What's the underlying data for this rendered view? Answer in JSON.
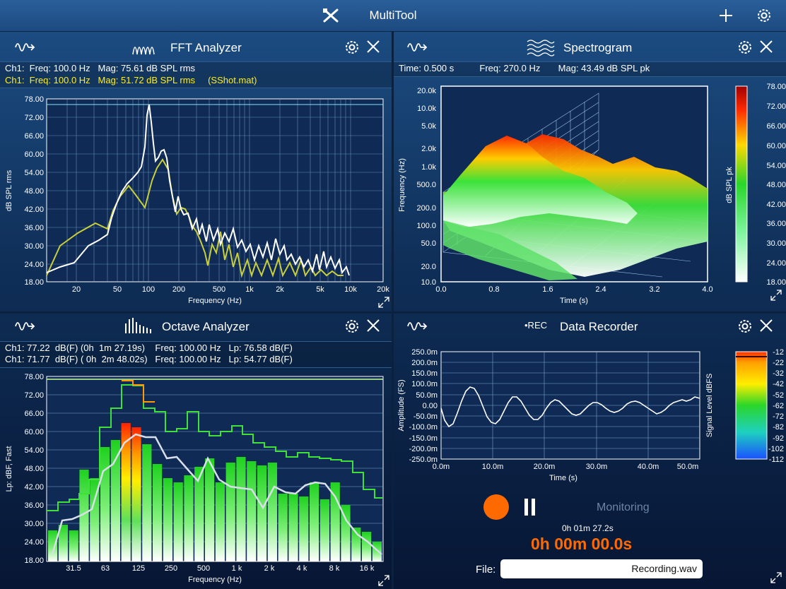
{
  "app": {
    "title": "MultiTool"
  },
  "fft": {
    "title": "FFT Analyzer",
    "line1": "Ch1:  Freq: 100.0 Hz   Mag: 75.61 dB SPL rms",
    "line2": "Ch1:  Freq: 100.0 Hz   Mag: 51.72 dB SPL rms     (SShot.mat)",
    "ylabel": "dB SPL rms",
    "xlabel": "Frequency (Hz)",
    "yticks": [
      "78.00",
      "72.00",
      "66.00",
      "60.00",
      "54.00",
      "48.00",
      "42.00",
      "36.00",
      "30.00",
      "24.00",
      "18.00"
    ],
    "xticks": [
      "20",
      "50",
      "100",
      "200",
      "500",
      "1k",
      "2k",
      "5k",
      "10k",
      "20k"
    ]
  },
  "spectrogram": {
    "title": "Spectrogram",
    "info": "Time: 0.500 s          Freq: 270.0 Hz       Mag: 43.49 dB SPL pk",
    "ylabel": "Frequency (Hz)",
    "xlabel": "Time (s)",
    "yticks": [
      "20.0k",
      "10.0k",
      "5.0k",
      "2.0k",
      "1.0k",
      "500.0",
      "200.0",
      "100.0",
      "50.0",
      "20.0",
      "10.0"
    ],
    "xticks": [
      "0.0",
      "0.8",
      "1.6",
      "2.4",
      "3.2",
      "4.0"
    ],
    "scale_label": "dB SPL pk",
    "scale_ticks": [
      "78.00",
      "72.00",
      "66.00",
      "60.00",
      "54.00",
      "48.00",
      "42.00",
      "36.00",
      "30.00",
      "24.00",
      "18.00"
    ]
  },
  "octave": {
    "title": "Octave Analyzer",
    "line1": "Ch1: 77.22  dB(F) (0h  1m 27.19s)    Freq: 100.00 Hz   Lp: 76.58 dB(F)",
    "line2": "Ch1: 71.77  dB(F) ( 0h  2m 48.02s)   Freq: 100.00 Hz   Lp: 54.77 dB(F)",
    "ylabel": "Lp: dBF, Fast",
    "xlabel": "Frequency (Hz)",
    "yticks": [
      "78.00",
      "72.00",
      "66.00",
      "60.00",
      "54.00",
      "48.00",
      "42.00",
      "36.00",
      "30.00",
      "24.00",
      "18.00"
    ],
    "xticks": [
      "31.5",
      "63",
      "125",
      "250",
      "500",
      "1 k",
      "2 k",
      "4 k",
      "8 k",
      "16 k"
    ]
  },
  "recorder": {
    "title": "Data Recorder",
    "rec_label": "•REC",
    "ylabel": "Amplitude (FS)",
    "xlabel": "Time (s)",
    "yticks": [
      "250.0m",
      "200.0m",
      "150.0m",
      "100.0m",
      "50.0m",
      "0.00",
      "-50.0m",
      "-100.0m",
      "-150.0m",
      "-200.0m",
      "-250.0m"
    ],
    "xticks": [
      "0.0m",
      "10.0m",
      "20.0m",
      "30.0m",
      "40.0m",
      "50.0m"
    ],
    "scale_label": "Signal Level dBFS",
    "scale_ticks": [
      "-12",
      "-22",
      "-32",
      "-42",
      "-52",
      "-62",
      "-72",
      "-82",
      "-92",
      "-102",
      "-112"
    ],
    "monitoring": "Monitoring",
    "elapsed": "0h 01m 27.2s",
    "timer": "0h 00m 00.0s",
    "file_label": "File:",
    "file_value": "Recording.wav"
  },
  "colors": {
    "accent_orange": "#ff6a00",
    "trace_yellow": "#c8cf3a",
    "bar_green": "#2ed62a"
  }
}
